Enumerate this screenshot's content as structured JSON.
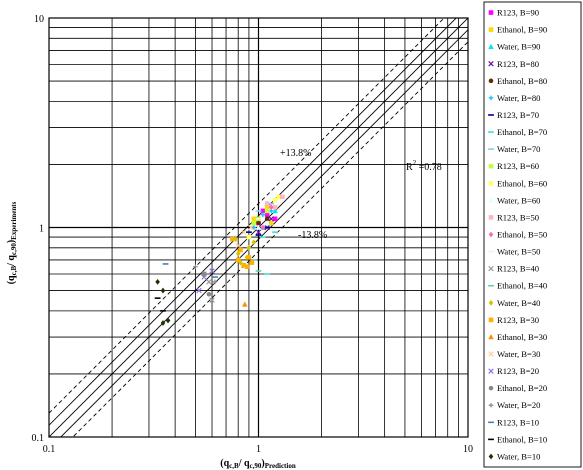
{
  "chart_data": {
    "type": "scatter",
    "xscale": "log",
    "yscale": "log",
    "xlim": [
      0.1,
      10
    ],
    "ylim": [
      0.1,
      10
    ],
    "x_ticks": [
      "0.1",
      "1",
      "10"
    ],
    "y_ticks": [
      "0.1",
      "1",
      "10"
    ],
    "xlabel": {
      "main": "(q",
      "sub1": "c,B",
      "mid": "/ q",
      "sub2": "c,90",
      "end": ")",
      "sub3": "Prediction"
    },
    "ylabel": {
      "main": "(q",
      "sub1": "c,B",
      "mid": "/ q",
      "sub2": "c,90",
      "end": ")",
      "sub3": "Experiments"
    },
    "grid": true,
    "legend_position": "right",
    "annotations": {
      "plus_band": "+13.8%",
      "minus_band": "-13.8%",
      "r2_prefix": "R",
      "r2_sup": "2",
      "r2_value": " =0.78"
    },
    "reference_lines": [
      {
        "type": "y=x"
      },
      {
        "type": "y=x*1.138"
      },
      {
        "type": "y=x/1.138"
      },
      {
        "type": "y=x*1.3",
        "style": "dashed"
      },
      {
        "type": "y=x/1.3",
        "style": "dashed"
      }
    ],
    "series": [
      {
        "name": "R123, B=90",
        "marker": "square",
        "color": "#ff00ff",
        "points": [
          [
            1.1,
            1.15
          ],
          [
            1.0,
            1.05
          ],
          [
            1.2,
            1.1
          ],
          [
            1.05,
            1.2
          ]
        ]
      },
      {
        "name": "Ethanol, B=90",
        "marker": "square",
        "color": "#ffd700",
        "points": [
          [
            0.95,
            1.1
          ],
          [
            1.1,
            1.25
          ],
          [
            1.15,
            1.05
          ]
        ]
      },
      {
        "name": "Water, B=90",
        "marker": "triangle",
        "color": "#00e5ee",
        "points": [
          [
            1.05,
            1.0
          ],
          [
            1.2,
            1.2
          ],
          [
            1.1,
            1.3
          ]
        ]
      },
      {
        "name": "R123, B=80",
        "marker": "x",
        "color": "#6a0dad",
        "points": [
          [
            1.0,
            0.95
          ],
          [
            1.1,
            1.0
          ],
          [
            1.15,
            1.1
          ]
        ]
      },
      {
        "name": "Ethanol, B=80",
        "marker": "circle",
        "color": "#5c2e00",
        "points": [
          [
            1.0,
            1.05
          ],
          [
            1.1,
            1.1
          ]
        ]
      },
      {
        "name": "Water, B=80",
        "marker": "plus",
        "color": "#00bfff",
        "points": [
          [
            1.05,
            1.15
          ],
          [
            1.15,
            1.2
          ],
          [
            0.95,
            1.0
          ]
        ]
      },
      {
        "name": "R123, B=70",
        "marker": "dash",
        "color": "#00008b",
        "points": [
          [
            1.0,
            0.92
          ],
          [
            1.1,
            1.0
          ],
          [
            0.9,
            0.95
          ]
        ]
      },
      {
        "name": "Ethanol, B=70",
        "marker": "dash",
        "color": "#40e0d0",
        "points": [
          [
            1.1,
            0.6
          ],
          [
            1.2,
            0.95
          ],
          [
            1.05,
            0.9
          ]
        ]
      },
      {
        "name": "Water, B=70",
        "marker": "dash",
        "color": "#87ceeb",
        "points": [
          [
            1.15,
            1.3
          ],
          [
            1.0,
            1.2
          ]
        ]
      },
      {
        "name": "R123, B=60",
        "marker": "square",
        "color": "#c0ff3e",
        "points": [
          [
            1.0,
            1.1
          ],
          [
            1.1,
            1.2
          ],
          [
            0.95,
            1.05
          ]
        ]
      },
      {
        "name": "Ethanol, B=60",
        "marker": "square",
        "color": "#ffff66",
        "points": [
          [
            1.2,
            1.35
          ],
          [
            1.25,
            1.4
          ],
          [
            0.9,
            0.9
          ]
        ]
      },
      {
        "name": "Water, B=60",
        "marker": "triangle",
        "color": "#e0ffff",
        "points": [
          [
            1.1,
            1.05
          ],
          [
            1.0,
            1.0
          ]
        ]
      },
      {
        "name": "R123, B=50",
        "marker": "square",
        "color": "#ffb6c1",
        "points": [
          [
            1.3,
            1.4
          ],
          [
            1.1,
            1.3
          ],
          [
            1.2,
            1.25
          ]
        ]
      },
      {
        "name": "Ethanol, B=50",
        "marker": "diamond",
        "color": "#ff69b4",
        "points": [
          [
            1.05,
            1.0
          ],
          [
            1.15,
            1.25
          ]
        ]
      },
      {
        "name": "Water, B=50",
        "marker": "dash",
        "color": "#f0f0f0",
        "points": [
          [
            1.0,
            1.1
          ]
        ]
      },
      {
        "name": "R123, B=40",
        "marker": "x",
        "color": "#999999",
        "points": [
          [
            0.6,
            0.45
          ],
          [
            0.55,
            0.6
          ],
          [
            0.58,
            0.55
          ]
        ]
      },
      {
        "name": "Ethanol, B=40",
        "marker": "dash",
        "color": "#66cdaa",
        "points": [
          [
            1.0,
            0.62
          ],
          [
            0.95,
            0.7
          ]
        ]
      },
      {
        "name": "Water, B=40",
        "marker": "diamond",
        "color": "#d4c400",
        "points": [
          [
            0.82,
            0.68
          ],
          [
            0.88,
            0.72
          ],
          [
            0.9,
            0.8
          ],
          [
            0.95,
            0.85
          ],
          [
            0.78,
            0.88
          ],
          [
            0.8,
            0.75
          ]
        ]
      },
      {
        "name": "R123, B=30",
        "marker": "square",
        "color": "#ffb000",
        "points": [
          [
            0.8,
            0.7
          ],
          [
            0.85,
            0.66
          ],
          [
            0.88,
            0.65
          ],
          [
            0.93,
            0.68
          ],
          [
            0.75,
            0.88
          ],
          [
            0.82,
            0.78
          ],
          [
            0.9,
            0.72
          ]
        ]
      },
      {
        "name": "Ethanol, B=30",
        "marker": "triangle",
        "color": "#ff8c00",
        "points": [
          [
            0.86,
            0.43
          ]
        ]
      },
      {
        "name": "Water, B=30",
        "marker": "x",
        "color": "#ffcc99",
        "points": [
          [
            0.85,
            0.95
          ],
          [
            0.92,
            1.0
          ],
          [
            0.8,
            0.82
          ]
        ]
      },
      {
        "name": "R123, B=20",
        "marker": "x",
        "color": "#9370db",
        "points": [
          [
            0.6,
            0.62
          ],
          [
            0.55,
            0.58
          ],
          [
            0.52,
            0.5
          ]
        ]
      },
      {
        "name": "Ethanol, B=20",
        "marker": "circle",
        "color": "#888888",
        "points": [
          [
            0.55,
            0.6
          ],
          [
            0.58,
            0.48
          ]
        ]
      },
      {
        "name": "Water, B=20",
        "marker": "plus",
        "color": "#888888",
        "points": [
          [
            0.5,
            0.65
          ],
          [
            0.62,
            0.55
          ]
        ]
      },
      {
        "name": "R123, B=10",
        "marker": "dash",
        "color": "#4682b4",
        "points": [
          [
            0.36,
            0.67
          ],
          [
            0.62,
            0.58
          ]
        ]
      },
      {
        "name": "Ethanol, B=10",
        "marker": "dash",
        "color": "#000000",
        "points": [
          [
            0.33,
            0.46
          ],
          [
            0.35,
            0.4
          ]
        ]
      },
      {
        "name": "Water, B=10",
        "marker": "diamond",
        "color": "#1a3300",
        "points": [
          [
            0.33,
            0.55
          ],
          [
            0.35,
            0.5
          ],
          [
            0.35,
            0.35
          ],
          [
            0.37,
            0.36
          ]
        ]
      }
    ]
  }
}
